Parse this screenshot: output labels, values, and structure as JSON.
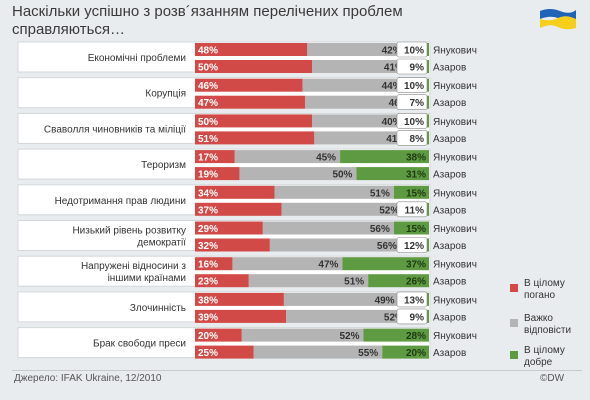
{
  "title_line1": "Наскільки успішно з розв´язанням перелічених проблем",
  "title_line2": "справляються…",
  "source": "Джерело: IFAK Ukraine, 12/2010",
  "copyright": "©DW",
  "colors": {
    "bad": "#d24a47",
    "hard": "#b4b4b4",
    "good": "#5e9a42",
    "flag_blue": "#1f64b6",
    "flag_yellow": "#f6cf1c"
  },
  "legend": [
    {
      "label_lines": [
        "В цілому",
        "погано"
      ],
      "color": "#d24a47"
    },
    {
      "label_lines": [
        "Важко",
        "відповісти"
      ],
      "color": "#b4b4b4"
    },
    {
      "label_lines": [
        "В цілому",
        "добре"
      ],
      "color": "#5e9a42"
    }
  ],
  "chart_data": {
    "type": "bar",
    "stacked": true,
    "orientation": "horizontal",
    "series_names": [
      "Янукович",
      "Азаров"
    ],
    "stack_labels": [
      "В цілому погано",
      "Важко відповісти",
      "В цілому добре"
    ],
    "categories": [
      {
        "label_lines": [
          "Економічні проблеми"
        ],
        "rows": [
          {
            "person": "Янукович",
            "bad": 48,
            "hard": 42,
            "good": 10
          },
          {
            "person": "Азаров",
            "bad": 50,
            "hard": 41,
            "good": 9
          }
        ]
      },
      {
        "label_lines": [
          "Корупція"
        ],
        "rows": [
          {
            "person": "Янукович",
            "bad": 46,
            "hard": 44,
            "good": 10
          },
          {
            "person": "Азаров",
            "bad": 47,
            "hard": 46,
            "good": 7
          }
        ]
      },
      {
        "label_lines": [
          "Сваволля чиновників та міліції"
        ],
        "rows": [
          {
            "person": "Янукович",
            "bad": 50,
            "hard": 40,
            "good": 10
          },
          {
            "person": "Азаров",
            "bad": 51,
            "hard": 41,
            "good": 8
          }
        ]
      },
      {
        "label_lines": [
          "Тероризм"
        ],
        "rows": [
          {
            "person": "Янукович",
            "bad": 17,
            "hard": 45,
            "good": 38
          },
          {
            "person": "Азаров",
            "bad": 19,
            "hard": 50,
            "good": 31
          }
        ]
      },
      {
        "label_lines": [
          "Недотримання прав людини"
        ],
        "rows": [
          {
            "person": "Янукович",
            "bad": 34,
            "hard": 51,
            "good": 15
          },
          {
            "person": "Азаров",
            "bad": 37,
            "hard": 52,
            "good": 11
          }
        ]
      },
      {
        "label_lines": [
          "Низький рівень розвитку",
          "демократії"
        ],
        "rows": [
          {
            "person": "Янукович",
            "bad": 29,
            "hard": 56,
            "good": 15
          },
          {
            "person": "Азаров",
            "bad": 32,
            "hard": 56,
            "good": 12
          }
        ]
      },
      {
        "label_lines": [
          "Напружені відносини з",
          "іншими країнами"
        ],
        "rows": [
          {
            "person": "Янукович",
            "bad": 16,
            "hard": 47,
            "good": 37
          },
          {
            "person": "Азаров",
            "bad": 23,
            "hard": 51,
            "good": 26
          }
        ]
      },
      {
        "label_lines": [
          "Злочинність"
        ],
        "rows": [
          {
            "person": "Янукович",
            "bad": 38,
            "hard": 49,
            "good": 13
          },
          {
            "person": "Азаров",
            "bad": 39,
            "hard": 52,
            "good": 9
          }
        ]
      },
      {
        "label_lines": [
          "Брак свободи преси"
        ],
        "rows": [
          {
            "person": "Янукович",
            "bad": 20,
            "hard": 52,
            "good": 28
          },
          {
            "person": "Азаров",
            "bad": 25,
            "hard": 55,
            "good": 20
          }
        ]
      }
    ]
  }
}
